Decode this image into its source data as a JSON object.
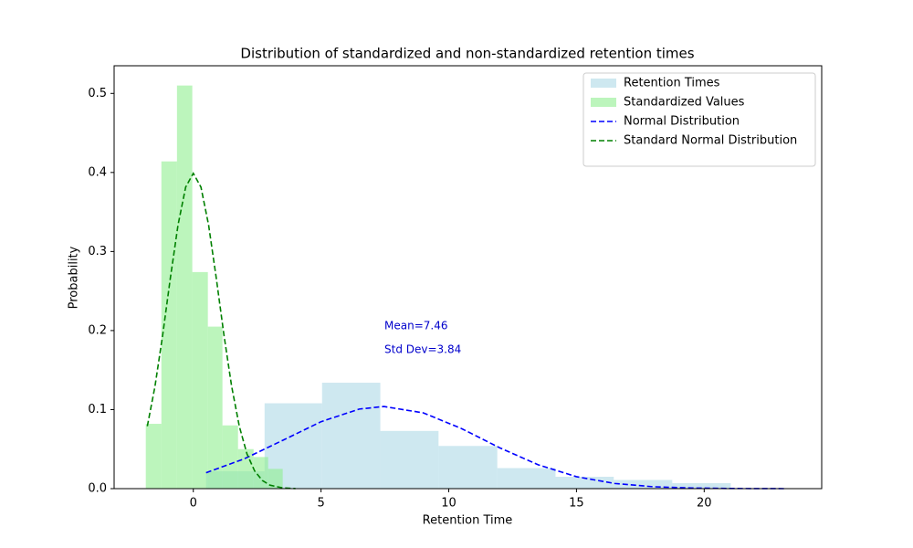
{
  "chart_data": {
    "type": "histogram",
    "title": "Distribution of standardized and non-standardized retention times",
    "xlabel": "Retention Time",
    "ylabel": "Probability",
    "xlim": [
      -3.1,
      24.6
    ],
    "ylim": [
      0,
      0.535
    ],
    "xticks": [
      0,
      5,
      10,
      15,
      20
    ],
    "yticks": [
      {
        "value": 0,
        "label": "0.0"
      },
      0.1,
      0.2,
      0.3,
      0.4,
      0.5
    ],
    "legend": "upper right",
    "annotations": [
      "Mean=7.46",
      "Std Dev=3.84"
    ],
    "series": [
      {
        "name": "Retention Times",
        "type": "histogram",
        "color": "#add8e6",
        "opacity": 0.6,
        "bins": [
          0.5,
          2.79,
          5.04,
          7.32,
          9.6,
          11.9,
          14.18,
          16.46,
          18.75,
          21.04
        ],
        "values": [
          0.022,
          0.108,
          0.134,
          0.073,
          0.054,
          0.026,
          0.015,
          0.011,
          0.007
        ]
      },
      {
        "name": "Standardized Values",
        "type": "histogram",
        "color": "#90ee90",
        "opacity": 0.6,
        "bins": [
          -1.86,
          -1.25,
          -0.64,
          -0.04,
          0.57,
          1.14,
          1.75,
          2.36,
          2.93,
          3.5
        ],
        "values": [
          0.082,
          0.414,
          0.51,
          0.274,
          0.205,
          0.08,
          0.05,
          0.04,
          0.025
        ]
      },
      {
        "name": "Normal Distribution",
        "type": "line",
        "color": "#0000ff",
        "dashed": true,
        "x": [
          0.5,
          2,
          3.5,
          5,
          6.5,
          7.46,
          9,
          10.5,
          12,
          13.5,
          15,
          16.5,
          18,
          19.5,
          21,
          23.2
        ],
        "values": [
          0.0201,
          0.0378,
          0.0611,
          0.0847,
          0.1007,
          0.1039,
          0.0959,
          0.076,
          0.0516,
          0.0302,
          0.0151,
          0.0065,
          0.0024,
          0.0008,
          0.0002,
          0
        ]
      },
      {
        "name": "Standard Normal Distribution",
        "type": "line",
        "color": "#008000",
        "dashed": true,
        "x": [
          -1.8,
          -1.5,
          -1.2,
          -0.9,
          -0.6,
          -0.3,
          0,
          0.3,
          0.6,
          0.9,
          1.2,
          1.5,
          1.8,
          2.1,
          2.4,
          2.7,
          3,
          3.5,
          4
        ],
        "values": [
          0.079,
          0.1295,
          0.1942,
          0.2661,
          0.3332,
          0.3814,
          0.3989,
          0.3814,
          0.3332,
          0.2661,
          0.1942,
          0.1295,
          0.079,
          0.044,
          0.0224,
          0.0104,
          0.0044,
          0.0009,
          0.0001
        ]
      }
    ]
  }
}
